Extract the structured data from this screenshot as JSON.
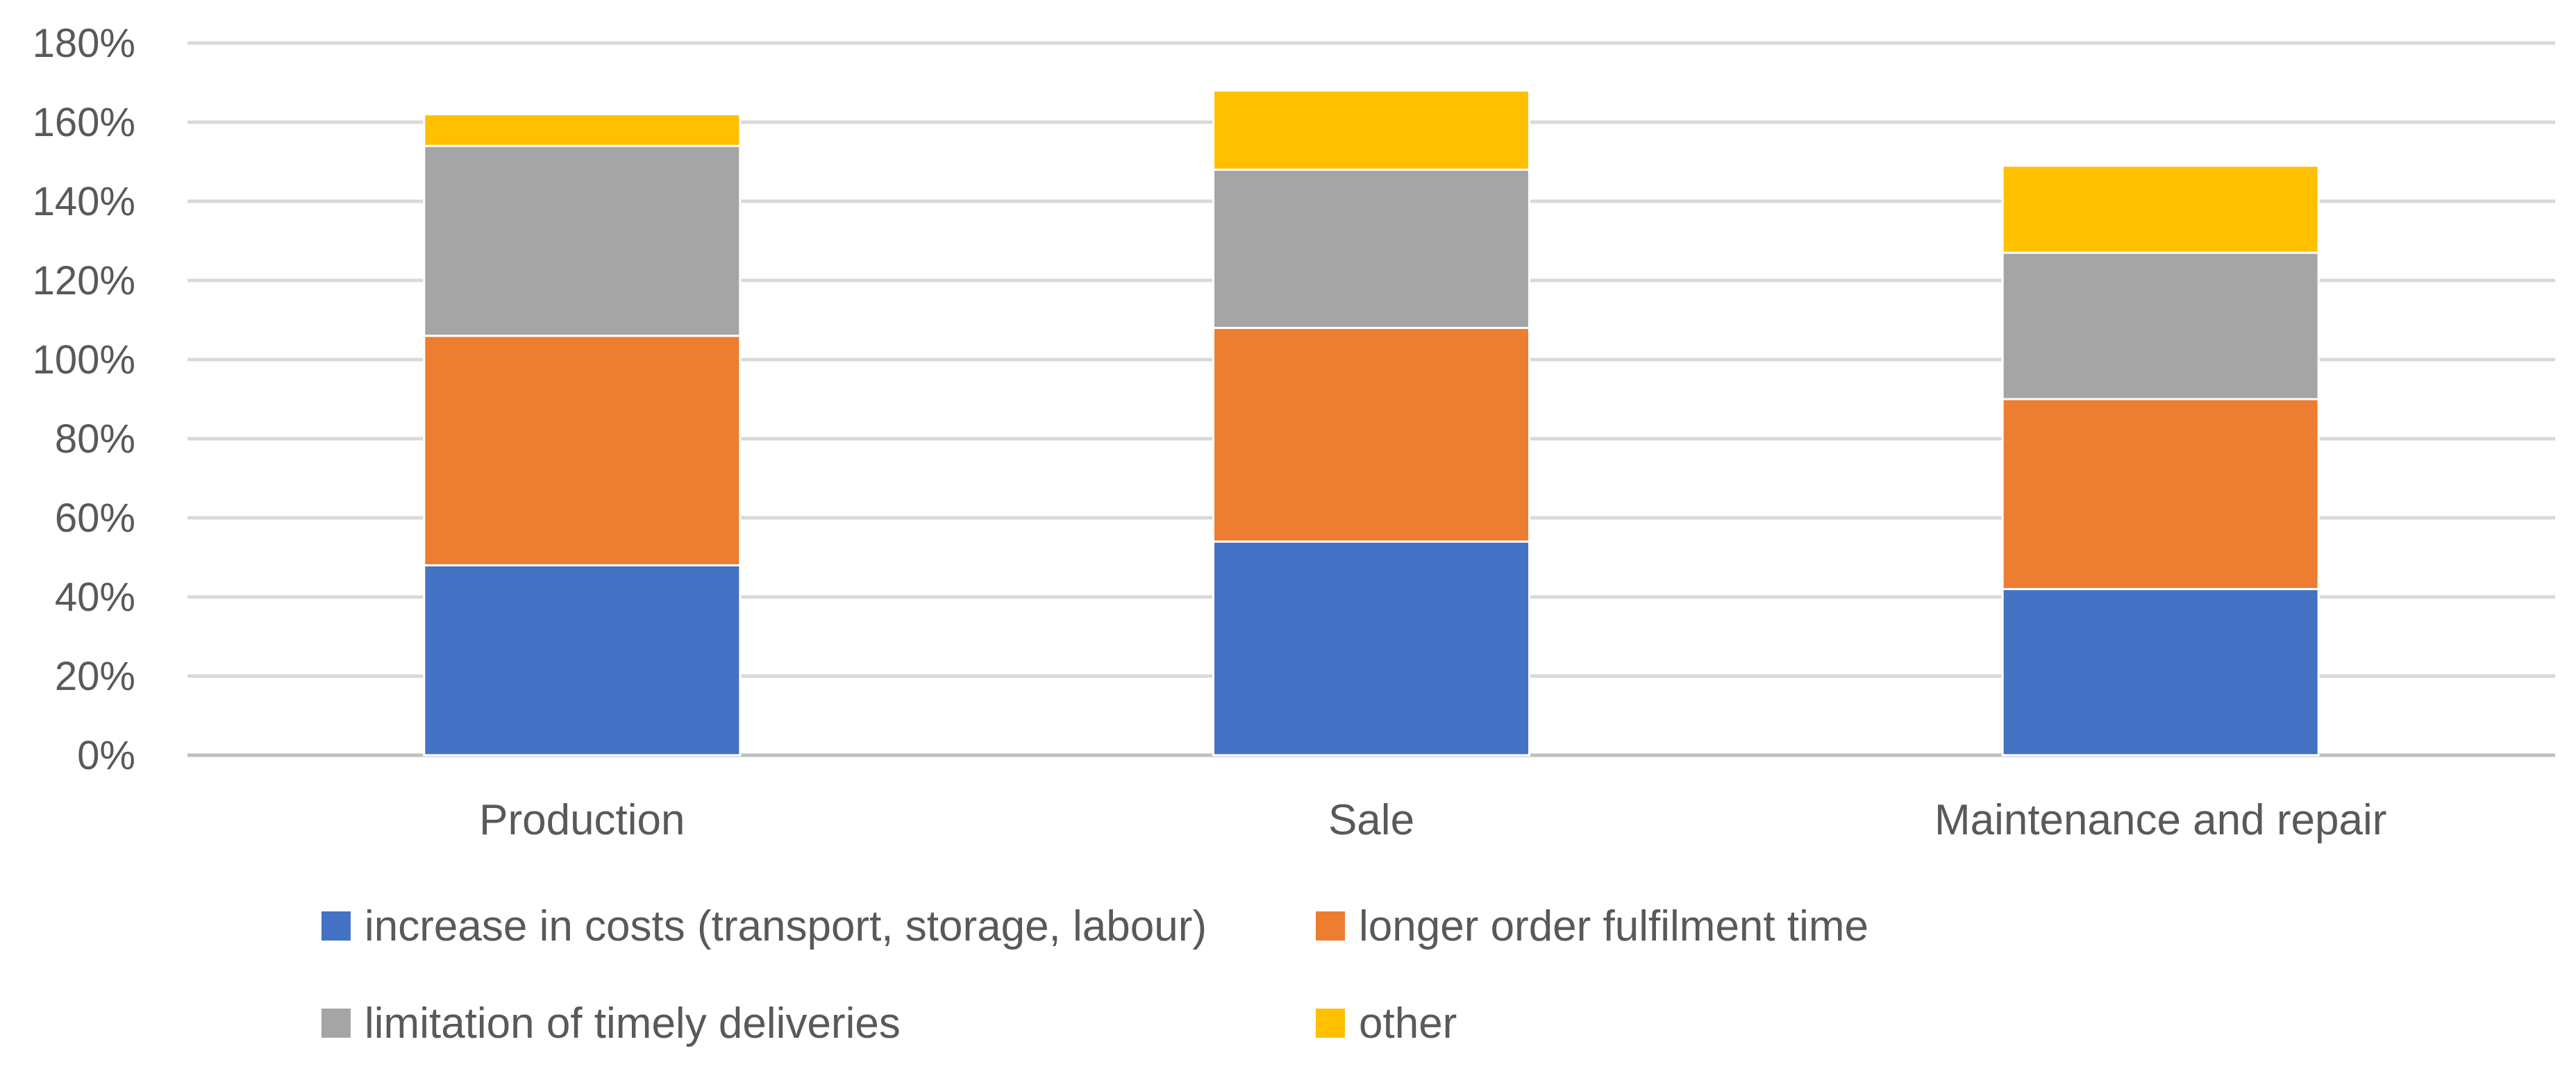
{
  "chart_data": {
    "type": "bar",
    "stacked": true,
    "categories": [
      "Production",
      "Sale",
      "Maintenance and repair"
    ],
    "series": [
      {
        "name": "increase in costs (transport, storage, labour)",
        "color": "#4472C4",
        "values": [
          48,
          54,
          42
        ]
      },
      {
        "name": "longer order fulfilment time",
        "color": "#ED7D31",
        "values": [
          58,
          54,
          48
        ]
      },
      {
        "name": "limitation of timely deliveries",
        "color": "#A5A5A5",
        "values": [
          48,
          40,
          37
        ]
      },
      {
        "name": "other",
        "color": "#FFC000",
        "values": [
          8,
          20,
          22
        ]
      }
    ],
    "yticks": [
      "0%",
      "20%",
      "40%",
      "60%",
      "80%",
      "100%",
      "120%",
      "140%",
      "160%",
      "180%"
    ],
    "ylim": [
      0,
      180
    ],
    "grid": true,
    "legend_position": "bottom"
  }
}
